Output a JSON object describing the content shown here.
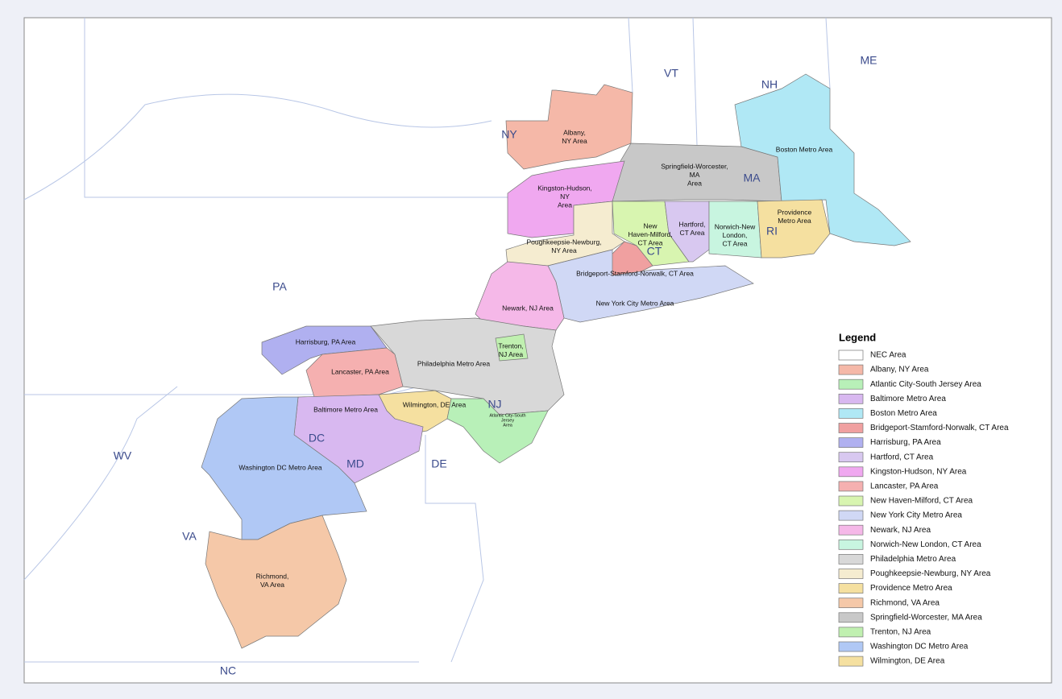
{
  "map": {
    "state_labels": [
      "NY",
      "VT",
      "NH",
      "ME",
      "MA",
      "RI",
      "CT",
      "PA",
      "NJ",
      "DE",
      "MD",
      "DC",
      "WV",
      "VA",
      "NC"
    ],
    "region_labels": [
      {
        "lines": [
          "Albany,",
          "NY Area"
        ]
      },
      {
        "lines": [
          "Springfield-Worcester,",
          "MA",
          "Area"
        ]
      },
      {
        "lines": [
          "Boston Metro Area"
        ]
      },
      {
        "lines": [
          "Kingston-Hudson,",
          "NY",
          "Area"
        ]
      },
      {
        "lines": [
          "New",
          "Haven-Milford,",
          "CT Area"
        ]
      },
      {
        "lines": [
          "Hartford,",
          "CT Area"
        ]
      },
      {
        "lines": [
          "Norwich-New",
          "London,",
          "CT Area"
        ]
      },
      {
        "lines": [
          "Providence",
          "Metro Area"
        ]
      },
      {
        "lines": [
          "Poughkeepsie-Newburg,",
          "NY Area"
        ]
      },
      {
        "lines": [
          "Bridgeport-Stamford-Norwalk, CT Area"
        ]
      },
      {
        "lines": [
          "New York City Metro Area"
        ]
      },
      {
        "lines": [
          "Newark, NJ Area"
        ]
      },
      {
        "lines": [
          "Harrisburg, PA Area"
        ]
      },
      {
        "lines": [
          "Trenton,",
          "NJ Area"
        ]
      },
      {
        "lines": [
          "Lancaster, PA Area"
        ]
      },
      {
        "lines": [
          "Philadelphia Metro Area"
        ]
      },
      {
        "lines": [
          "Wilmington, DE Area"
        ]
      },
      {
        "lines": [
          "Baltimore Metro Area"
        ]
      },
      {
        "lines": [
          "Atlantic City-South",
          "Jersey",
          "Area"
        ]
      },
      {
        "lines": [
          "Washington DC Metro Area"
        ]
      },
      {
        "lines": [
          "Richmond,",
          "VA Area"
        ]
      }
    ],
    "legend": {
      "title": "Legend",
      "items": [
        {
          "label": "NEC Area",
          "color": "#ffffff"
        },
        {
          "label": "Albany, NY Area",
          "color": "#f5b8a8"
        },
        {
          "label": "Atlantic City-South Jersey Area",
          "color": "#b8f0b8"
        },
        {
          "label": "Baltimore Metro Area",
          "color": "#d8b8f0"
        },
        {
          "label": "Boston Metro Area",
          "color": "#b0e8f5"
        },
        {
          "label": "Bridgeport-Stamford-Norwalk, CT Area",
          "color": "#f0a0a0"
        },
        {
          "label": "Harrisburg, PA Area",
          "color": "#b0b0f0"
        },
        {
          "label": "Hartford, CT Area",
          "color": "#d8c8f0"
        },
        {
          "label": "Kingston-Hudson, NY Area",
          "color": "#f0a8f0"
        },
        {
          "label": "Lancaster, PA Area",
          "color": "#f5b0b0"
        },
        {
          "label": "New Haven-Milford, CT Area",
          "color": "#d8f5b0"
        },
        {
          "label": "New York City Metro Area",
          "color": "#d0d8f5"
        },
        {
          "label": "Newark, NJ Area",
          "color": "#f5b8e8"
        },
        {
          "label": "Norwich-New London, CT Area",
          "color": "#c8f5e0"
        },
        {
          "label": "Philadelphia Metro Area",
          "color": "#d8d8d8"
        },
        {
          "label": "Poughkeepsie-Newburg, NY Area",
          "color": "#f5ecd0"
        },
        {
          "label": "Providence Metro Area",
          "color": "#f5e0a0"
        },
        {
          "label": "Richmond, VA Area",
          "color": "#f5c8a8"
        },
        {
          "label": "Springfield-Worcester, MA Area",
          "color": "#c8c8c8"
        },
        {
          "label": "Trenton, NJ Area",
          "color": "#c0f0b0"
        },
        {
          "label": "Washington DC Metro Area",
          "color": "#b0c8f5"
        },
        {
          "label": "Wilmington, DE Area",
          "color": "#f5e0a0"
        }
      ]
    }
  }
}
